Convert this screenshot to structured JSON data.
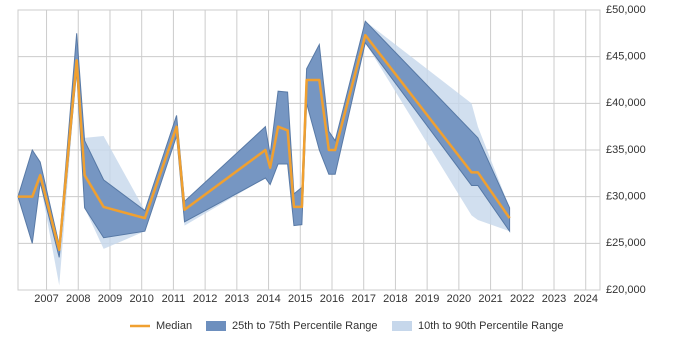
{
  "chart_data": {
    "type": "line",
    "x": [
      2006.1,
      2006.55,
      2006.8,
      2007.4,
      2007.95,
      2008.2,
      2008.8,
      2010.1,
      2011.1,
      2011.35,
      2013.9,
      2014.05,
      2014.3,
      2014.6,
      2014.8,
      2015.05,
      2015.2,
      2015.6,
      2015.9,
      2016.1,
      2017.05,
      2020.4,
      2020.6,
      2021.6
    ],
    "series": [
      {
        "name": "Median",
        "color": "#f0a030",
        "values": [
          30000,
          30000,
          32300,
          24300,
          44600,
          32300,
          28900,
          27700,
          37500,
          28600,
          35000,
          33100,
          37500,
          37100,
          28900,
          28900,
          42500,
          42500,
          35000,
          35000,
          47300,
          32600,
          32600,
          27700
        ]
      }
    ],
    "bands": [
      {
        "name": "10th to 90th Percentile Range",
        "color": "#c6d7eb",
        "low": [
          30000,
          25000,
          31500,
          20500,
          43500,
          28800,
          24400,
          26300,
          36500,
          26900,
          32000,
          31300,
          33500,
          33500,
          26900,
          27000,
          40000,
          35000,
          32400,
          32400,
          46500,
          28000,
          27500,
          26300
        ],
        "high": [
          30000,
          35000,
          33700,
          25000,
          47500,
          36300,
          36500,
          28500,
          38700,
          29500,
          37500,
          34500,
          41300,
          41200,
          30300,
          31000,
          43700,
          46300,
          37000,
          36000,
          48800,
          40000,
          37500,
          28800
        ]
      },
      {
        "name": "25th to 75th Percentile Range",
        "color": "#6d8fbe",
        "low": [
          30000,
          25000,
          31500,
          23500,
          43500,
          28800,
          25600,
          26300,
          36500,
          27300,
          32000,
          31300,
          33500,
          33500,
          26900,
          27000,
          40000,
          35000,
          32400,
          32400,
          46500,
          31200,
          31200,
          26300
        ],
        "high": [
          30000,
          35000,
          33700,
          24800,
          47500,
          36000,
          31800,
          28500,
          38700,
          29500,
          37500,
          34500,
          41300,
          41200,
          30300,
          31000,
          43700,
          46300,
          37000,
          36000,
          48800,
          37000,
          36300,
          28800
        ]
      }
    ],
    "xlim": [
      2006.1,
      2024.45
    ],
    "xticks": [
      2007,
      2008,
      2009,
      2010,
      2011,
      2012,
      2013,
      2014,
      2015,
      2016,
      2017,
      2018,
      2019,
      2020,
      2021,
      2022,
      2023,
      2024
    ],
    "ylim": [
      20000,
      50000
    ],
    "yticks": [
      {
        "value": 20000,
        "label": "£20,000"
      },
      {
        "value": 25000,
        "label": "£25,000"
      },
      {
        "value": 30000,
        "label": "£30,000"
      },
      {
        "value": 35000,
        "label": "£35,000"
      },
      {
        "value": 40000,
        "label": "£40,000"
      },
      {
        "value": 45000,
        "label": "£45,000"
      },
      {
        "value": 50000,
        "label": "£50,000"
      }
    ],
    "grid": true
  }
}
